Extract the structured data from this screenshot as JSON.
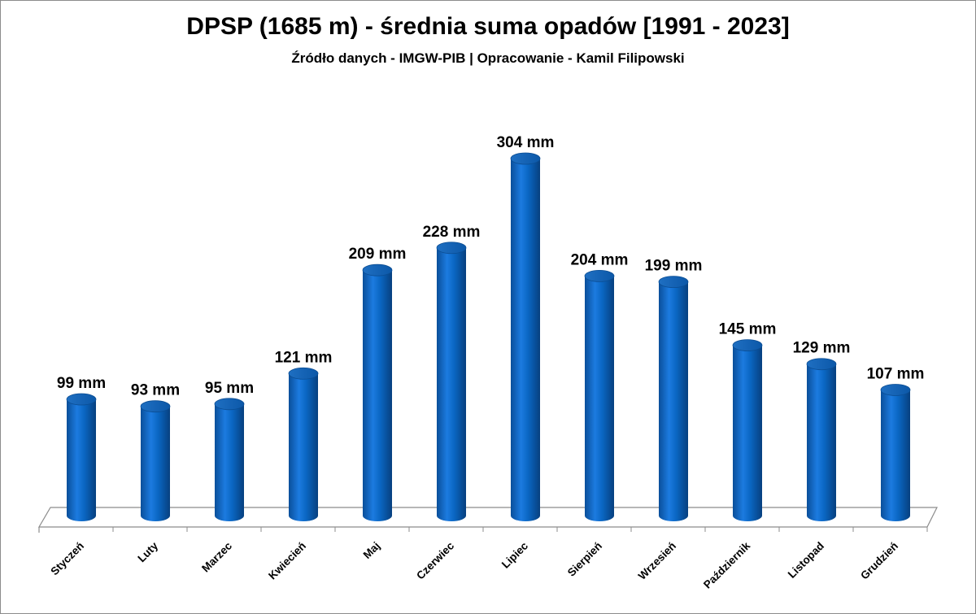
{
  "chart_data": {
    "type": "bar",
    "title": "DPSP (1685 m) - średnia suma opadów [1991 - 2023]",
    "subtitle": "Źródło danych - IMGW-PIB | Opracowanie - Kamil Filipowski",
    "categories": [
      "Styczeń",
      "Luty",
      "Marzec",
      "Kwiecień",
      "Maj",
      "Czerwiec",
      "Lipiec",
      "Sierpień",
      "Wrzesień",
      "Październik",
      "Listopad",
      "Grudzień"
    ],
    "values": [
      99,
      93,
      95,
      121,
      209,
      228,
      304,
      204,
      199,
      145,
      129,
      107
    ],
    "data_labels": [
      "99 mm",
      "93 mm",
      "95 mm",
      "121 mm",
      "209 mm",
      "228 mm",
      "304 mm",
      "204 mm",
      "199 mm",
      "145 mm",
      "129 mm",
      "107 mm"
    ],
    "xlabel": "",
    "ylabel": "",
    "ylim": [
      0,
      304
    ],
    "grid": false,
    "legend": "none",
    "bar_color": "#0a66c2"
  }
}
